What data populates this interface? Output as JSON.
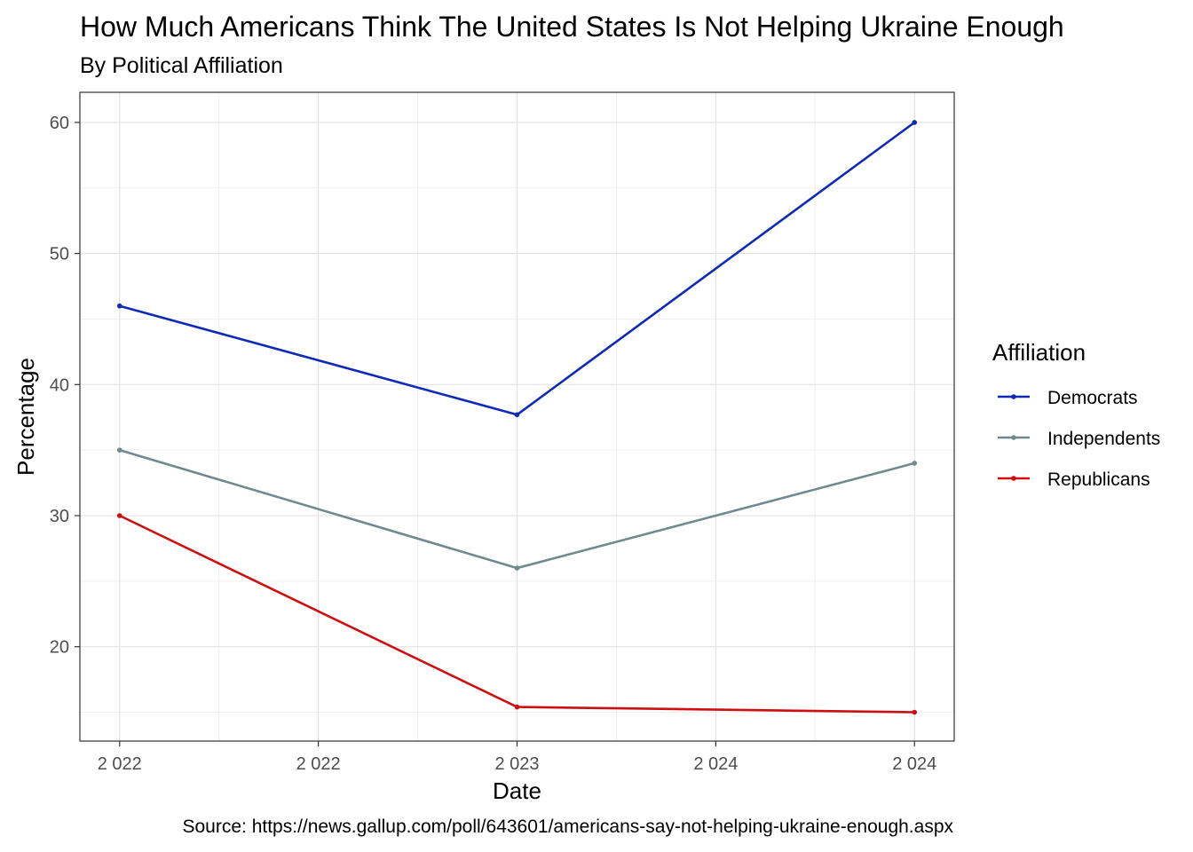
{
  "chart_data": {
    "type": "line",
    "title": "How Much Americans Think The United States Is Not Helping Ukraine Enough",
    "subtitle": "By Political Affiliation",
    "caption": "Source: https://news.gallup.com/poll/643601/americans-say-not-helping-ukraine-enough.aspx",
    "xlabel": "Date",
    "ylabel": "Percentage",
    "x_ticks": [
      "2 022",
      "2 022",
      "2 023",
      "2 024",
      "2 024"
    ],
    "y_ticks": [
      20,
      30,
      40,
      50,
      60
    ],
    "ylim": [
      12.8,
      62.3
    ],
    "x": [
      2022.0,
      2023.0,
      2024.0
    ],
    "xlim": [
      2021.9,
      2024.1
    ],
    "grid": true,
    "legend_title": "Affiliation",
    "legend_position": "right",
    "series": [
      {
        "name": "Democrats",
        "color": "#0f2ab5",
        "values": [
          46,
          37.7,
          60
        ]
      },
      {
        "name": "Independents",
        "color": "#6f8a8c",
        "values": [
          35,
          26,
          34
        ]
      },
      {
        "name": "Republicans",
        "color": "#cc1010",
        "values": [
          30,
          15.4,
          15
        ]
      }
    ]
  }
}
